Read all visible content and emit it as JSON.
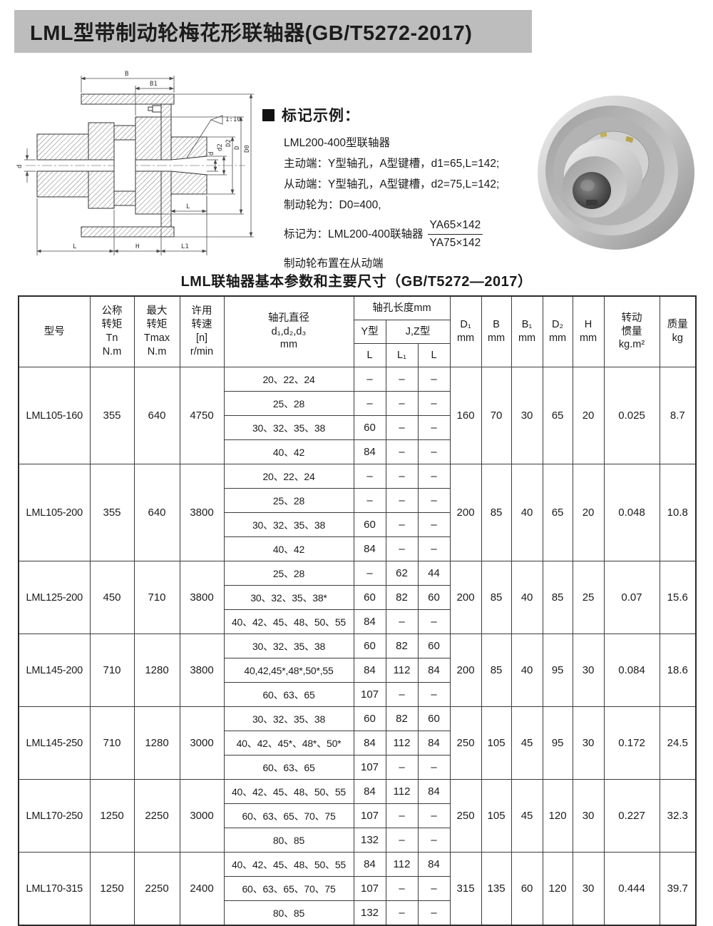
{
  "page_title": "LML型带制动轮梅花形联轴器(GB/T5272-2017)",
  "marking": {
    "heading": "标记示例：",
    "product": "LML200-400型联轴器",
    "line_active": "主动端：Y型轴孔，A型键槽，d1=65,L=142;",
    "line_driven": "从动端：Y型轴孔，A型键槽，d2=75,L=142;",
    "line_brake": "制动轮为：D0=400,",
    "line_mark_prefix": "标记为：LML200-400联轴器",
    "fraction_top": "YA65×142",
    "fraction_bottom": "YA75×142",
    "line_note": "制动轮布置在从动端"
  },
  "drawing_labels": {
    "B": "B",
    "B1": "B1",
    "taper": "1:10",
    "d_left": "d",
    "L_mid": "L",
    "d": "d",
    "d2": "d2",
    "D2": "D2",
    "D": "D",
    "D0": "D0",
    "L_bottom": "L",
    "H": "H",
    "L1": "L1"
  },
  "table": {
    "title": "LML联轴器基本参数和主要尺寸（GB/T5272—2017）",
    "header": {
      "model": "型号",
      "tn": "公称\n转矩\nTn\nN.m",
      "tmax": "最大\n转矩\nTmax\nN.m",
      "speed": "许用\n转速\n[n]\nr/min",
      "bore_dia": "轴孔直径\nd₁,d₂,d₃\nmm",
      "bore_len": "轴孔长度mm",
      "y_type": "Y型",
      "jz_type": "J,Z型",
      "L": "L",
      "L1": "L₁",
      "L2": "L",
      "D1": "D₁\nmm",
      "B": "B\nmm",
      "B1": "B₁\nmm",
      "D2": "D₂\nmm",
      "H": "H\nmm",
      "inertia": "转动\n惯量\nkg.m²",
      "mass": "质量\nkg"
    },
    "groups": [
      {
        "model": "LML105-160",
        "tn": "355",
        "tmax": "640",
        "speed": "4750",
        "bores": [
          {
            "d": "20、22、24",
            "L": "–",
            "L1": "–",
            "LZ": "–"
          },
          {
            "d": "25、28",
            "L": "–",
            "L1": "–",
            "LZ": "–"
          },
          {
            "d": "30、32、35、38",
            "L": "60",
            "L1": "–",
            "LZ": "–"
          },
          {
            "d": "40、42",
            "L": "84",
            "L1": "–",
            "LZ": "–"
          }
        ],
        "D1": "160",
        "B": "70",
        "B1": "30",
        "D2": "65",
        "H": "20",
        "inertia": "0.025",
        "mass": "8.7"
      },
      {
        "model": "LML105-200",
        "tn": "355",
        "tmax": "640",
        "speed": "3800",
        "bores": [
          {
            "d": "20、22、24",
            "L": "–",
            "L1": "–",
            "LZ": "–"
          },
          {
            "d": "25、28",
            "L": "–",
            "L1": "–",
            "LZ": "–"
          },
          {
            "d": "30、32、35、38",
            "L": "60",
            "L1": "–",
            "LZ": "–"
          },
          {
            "d": "40、42",
            "L": "84",
            "L1": "–",
            "LZ": "–"
          }
        ],
        "D1": "200",
        "B": "85",
        "B1": "40",
        "D2": "65",
        "H": "20",
        "inertia": "0.048",
        "mass": "10.8"
      },
      {
        "model": "LML125-200",
        "tn": "450",
        "tmax": "710",
        "speed": "3800",
        "bores": [
          {
            "d": "25、28",
            "L": "–",
            "L1": "62",
            "LZ": "44"
          },
          {
            "d": "30、32、35、38*",
            "L": "60",
            "L1": "82",
            "LZ": "60"
          },
          {
            "d": "40、42、45、48、50、55",
            "L": "84",
            "L1": "–",
            "LZ": "–"
          }
        ],
        "D1": "200",
        "B": "85",
        "B1": "40",
        "D2": "85",
        "H": "25",
        "inertia": "0.07",
        "mass": "15.6"
      },
      {
        "model": "LML145-200",
        "tn": "710",
        "tmax": "1280",
        "speed": "3800",
        "bores": [
          {
            "d": "30、32、35、38",
            "L": "60",
            "L1": "82",
            "LZ": "60"
          },
          {
            "d": "40,42,45*,48*,50*,55",
            "L": "84",
            "L1": "112",
            "LZ": "84"
          },
          {
            "d": "60、63、65",
            "L": "107",
            "L1": "–",
            "LZ": "–"
          }
        ],
        "D1": "200",
        "B": "85",
        "B1": "40",
        "D2": "95",
        "H": "30",
        "inertia": "0.084",
        "mass": "18.6"
      },
      {
        "model": "LML145-250",
        "tn": "710",
        "tmax": "1280",
        "speed": "3000",
        "bores": [
          {
            "d": "30、32、35、38",
            "L": "60",
            "L1": "82",
            "LZ": "60"
          },
          {
            "d": "40、42、45*、48*、50*",
            "L": "84",
            "L1": "112",
            "LZ": "84"
          },
          {
            "d": "60、63、65",
            "L": "107",
            "L1": "–",
            "LZ": "–"
          }
        ],
        "D1": "250",
        "B": "105",
        "B1": "45",
        "D2": "95",
        "H": "30",
        "inertia": "0.172",
        "mass": "24.5"
      },
      {
        "model": "LML170-250",
        "tn": "1250",
        "tmax": "2250",
        "speed": "3000",
        "bores": [
          {
            "d": "40、42、45、48、50、55",
            "L": "84",
            "L1": "112",
            "LZ": "84"
          },
          {
            "d": "60、63、65、70、75",
            "L": "107",
            "L1": "–",
            "LZ": "–"
          },
          {
            "d": "80、85",
            "L": "132",
            "L1": "–",
            "LZ": "–"
          }
        ],
        "D1": "250",
        "B": "105",
        "B1": "45",
        "D2": "120",
        "H": "30",
        "inertia": "0.227",
        "mass": "32.3"
      },
      {
        "model": "LML170-315",
        "tn": "1250",
        "tmax": "2250",
        "speed": "2400",
        "bores": [
          {
            "d": "40、42、45、48、50、55",
            "L": "84",
            "L1": "112",
            "LZ": "84"
          },
          {
            "d": "60、63、65、70、75",
            "L": "107",
            "L1": "–",
            "LZ": "–"
          },
          {
            "d": "80、85",
            "L": "132",
            "L1": "–",
            "LZ": "–"
          }
        ],
        "D1": "315",
        "B": "135",
        "B1": "60",
        "D2": "120",
        "H": "30",
        "inertia": "0.444",
        "mass": "39.7"
      }
    ]
  },
  "colors": {
    "title_bar_bg": "#bdbdbd",
    "table_border": "#3c3c3c",
    "text": "#1a1a1a"
  }
}
